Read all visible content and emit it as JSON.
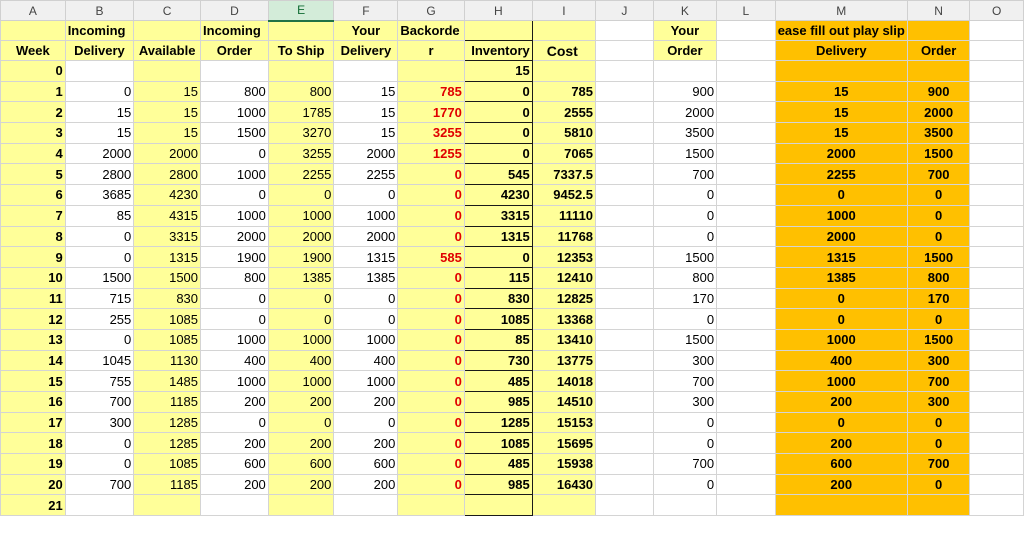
{
  "columns": [
    "A",
    "B",
    "C",
    "D",
    "E",
    "F",
    "G",
    "H",
    "I",
    "J",
    "K",
    "L",
    "M",
    "N",
    "O"
  ],
  "selected_column": "E",
  "header_row1": {
    "B": "Incoming",
    "D": "Incoming",
    "F": "Your",
    "G": "Backorde",
    "K": "Your",
    "M": "ease fill out play slip"
  },
  "header_row2": {
    "A": "Week",
    "B": "Delivery",
    "C": "Available",
    "D": "Order",
    "E": "To Ship",
    "F": "Delivery",
    "G": "r",
    "H": "Inventory",
    "I": "Cost",
    "K": "Order",
    "M": "Delivery",
    "N": "Order"
  },
  "row0": {
    "week": "0",
    "inventory": "15"
  },
  "rows": [
    {
      "week": "1",
      "b": "0",
      "c": "15",
      "d": "800",
      "e": "800",
      "f": "15",
      "g": "785",
      "g_red": true,
      "h": "0",
      "i": "785",
      "k": "900",
      "m": "15",
      "n": "900"
    },
    {
      "week": "2",
      "b": "15",
      "c": "15",
      "d": "1000",
      "e": "1785",
      "f": "15",
      "g": "1770",
      "g_red": true,
      "h": "0",
      "i": "2555",
      "k": "2000",
      "m": "15",
      "n": "2000"
    },
    {
      "week": "3",
      "b": "15",
      "c": "15",
      "d": "1500",
      "e": "3270",
      "f": "15",
      "g": "3255",
      "g_red": true,
      "h": "0",
      "i": "5810",
      "k": "3500",
      "m": "15",
      "n": "3500"
    },
    {
      "week": "4",
      "b": "2000",
      "c": "2000",
      "d": "0",
      "e": "3255",
      "f": "2000",
      "g": "1255",
      "g_red": true,
      "h": "0",
      "i": "7065",
      "k": "1500",
      "m": "2000",
      "n": "1500"
    },
    {
      "week": "5",
      "b": "2800",
      "c": "2800",
      "d": "1000",
      "e": "2255",
      "f": "2255",
      "g": "0",
      "g_red": true,
      "h": "545",
      "i": "7337.5",
      "k": "700",
      "m": "2255",
      "n": "700"
    },
    {
      "week": "6",
      "b": "3685",
      "c": "4230",
      "d": "0",
      "e": "0",
      "f": "0",
      "g": "0",
      "g_red": true,
      "h": "4230",
      "i": "9452.5",
      "k": "0",
      "m": "0",
      "n": "0"
    },
    {
      "week": "7",
      "b": "85",
      "c": "4315",
      "d": "1000",
      "e": "1000",
      "f": "1000",
      "g": "0",
      "g_red": true,
      "h": "3315",
      "i": "11110",
      "k": "0",
      "m": "1000",
      "n": "0"
    },
    {
      "week": "8",
      "b": "0",
      "c": "3315",
      "d": "2000",
      "e": "2000",
      "f": "2000",
      "g": "0",
      "g_red": true,
      "h": "1315",
      "i": "11768",
      "k": "0",
      "m": "2000",
      "n": "0"
    },
    {
      "week": "9",
      "b": "0",
      "c": "1315",
      "d": "1900",
      "e": "1900",
      "f": "1315",
      "g": "585",
      "g_red": true,
      "h": "0",
      "i": "12353",
      "k": "1500",
      "m": "1315",
      "n": "1500"
    },
    {
      "week": "10",
      "b": "1500",
      "c": "1500",
      "d": "800",
      "e": "1385",
      "f": "1385",
      "g": "0",
      "g_red": true,
      "h": "115",
      "i": "12410",
      "k": "800",
      "m": "1385",
      "n": "800"
    },
    {
      "week": "11",
      "b": "715",
      "c": "830",
      "d": "0",
      "e": "0",
      "f": "0",
      "g": "0",
      "g_red": true,
      "h": "830",
      "i": "12825",
      "k": "170",
      "m": "0",
      "n": "170"
    },
    {
      "week": "12",
      "b": "255",
      "c": "1085",
      "d": "0",
      "e": "0",
      "f": "0",
      "g": "0",
      "g_red": true,
      "h": "1085",
      "i": "13368",
      "k": "0",
      "m": "0",
      "n": "0"
    },
    {
      "week": "13",
      "b": "0",
      "c": "1085",
      "d": "1000",
      "e": "1000",
      "f": "1000",
      "g": "0",
      "g_red": true,
      "h": "85",
      "i": "13410",
      "k": "1500",
      "m": "1000",
      "n": "1500"
    },
    {
      "week": "14",
      "b": "1045",
      "c": "1130",
      "d": "400",
      "e": "400",
      "f": "400",
      "g": "0",
      "g_red": true,
      "h": "730",
      "i": "13775",
      "k": "300",
      "m": "400",
      "n": "300"
    },
    {
      "week": "15",
      "b": "755",
      "c": "1485",
      "d": "1000",
      "e": "1000",
      "f": "1000",
      "g": "0",
      "g_red": true,
      "h": "485",
      "i": "14018",
      "k": "700",
      "m": "1000",
      "n": "700"
    },
    {
      "week": "16",
      "b": "700",
      "c": "1185",
      "d": "200",
      "e": "200",
      "f": "200",
      "g": "0",
      "g_red": true,
      "h": "985",
      "i": "14510",
      "k": "300",
      "m": "200",
      "n": "300"
    },
    {
      "week": "17",
      "b": "300",
      "c": "1285",
      "d": "0",
      "e": "0",
      "f": "0",
      "g": "0",
      "g_red": true,
      "h": "1285",
      "i": "15153",
      "k": "0",
      "m": "0",
      "n": "0"
    },
    {
      "week": "18",
      "b": "0",
      "c": "1285",
      "d": "200",
      "e": "200",
      "f": "200",
      "g": "0",
      "g_red": true,
      "h": "1085",
      "i": "15695",
      "k": "0",
      "m": "200",
      "n": "0"
    },
    {
      "week": "19",
      "b": "0",
      "c": "1085",
      "d": "600",
      "e": "600",
      "f": "600",
      "g": "0",
      "g_red": true,
      "h": "485",
      "i": "15938",
      "k": "700",
      "m": "600",
      "n": "700"
    },
    {
      "week": "20",
      "b": "700",
      "c": "1185",
      "d": "200",
      "e": "200",
      "f": "200",
      "g": "0",
      "g_red": true,
      "h": "985",
      "i": "16430",
      "k": "0",
      "m": "200",
      "n": "0"
    }
  ],
  "row21": {
    "week": "21"
  },
  "colors": {
    "yellow": "#ffff99",
    "orange": "#ffc000",
    "backorder_red": "#e00000",
    "selected_header": "#d3ecd9"
  }
}
